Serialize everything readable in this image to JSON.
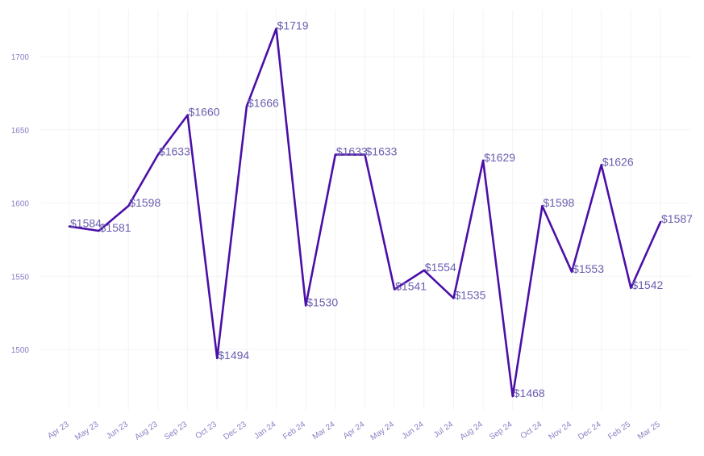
{
  "chart_data": {
    "type": "line",
    "title": "",
    "xlabel": "",
    "ylabel": "",
    "categories": [
      "Apr 23",
      "May 23",
      "Jun 23",
      "Aug 23",
      "Sep 23",
      "Oct 23",
      "Dec 23",
      "Jan 24",
      "Feb 24",
      "Mar 24",
      "Apr 24",
      "May 24",
      "Jun 24",
      "Jul 24",
      "Aug 24",
      "Sep 24",
      "Oct 24",
      "Nov 24",
      "Dec 24",
      "Feb 25",
      "Mar 25"
    ],
    "series": [
      {
        "values": [
          1584,
          1581,
          1598,
          1633,
          1660,
          1494,
          1666,
          1719,
          1530,
          1633,
          1633,
          1541,
          1554,
          1535,
          1629,
          1468,
          1598,
          1553,
          1626,
          1542,
          1587
        ],
        "data_labels": [
          "$1584",
          "$1581",
          "$1598",
          "$1633",
          "$1660",
          "$1494",
          "$1666",
          "$1719",
          "$1530",
          "$1633",
          "$1633",
          "$1541",
          "$1554",
          "$1535",
          "$1629",
          "$1468",
          "$1598",
          "$1553",
          "$1626",
          "$1542",
          "$1587"
        ]
      }
    ],
    "ylim": [
      1460,
      1725
    ],
    "yticks": [
      1500,
      1550,
      1600,
      1650,
      1700
    ],
    "ytick_labels": [
      "1500",
      "1550",
      "1600",
      "1650",
      "1700"
    ],
    "grid": true,
    "legend": "none",
    "colors": {
      "line": "#4b0fa8",
      "data_label": "#6a5fb0",
      "tick_label": "#8a7fc4",
      "grid": "#eeeeee"
    }
  }
}
